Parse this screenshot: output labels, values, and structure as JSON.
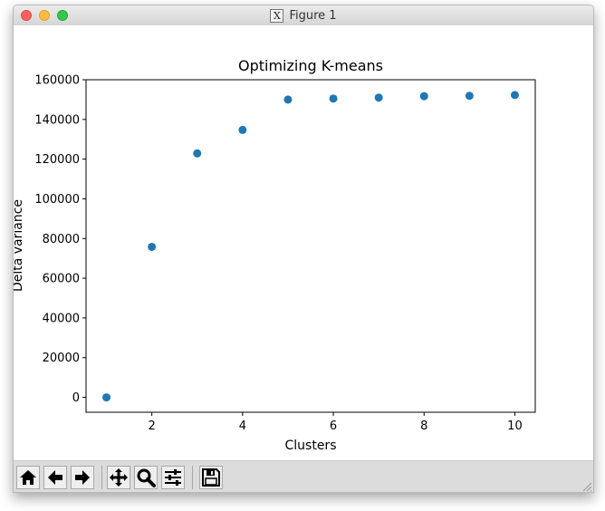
{
  "window": {
    "title": "Figure 1",
    "title_icon": "x11-icon",
    "title_icon_glyph": "X"
  },
  "toolbar": {
    "buttons": [
      {
        "name": "home-button",
        "icon": "home-icon"
      },
      {
        "name": "back-button",
        "icon": "arrow-left-icon"
      },
      {
        "name": "forward-button",
        "icon": "arrow-right-icon"
      },
      {
        "name": "pan-button",
        "icon": "move-icon"
      },
      {
        "name": "zoom-button",
        "icon": "magnifier-icon"
      },
      {
        "name": "configure-subplots-button",
        "icon": "sliders-icon"
      },
      {
        "name": "save-button",
        "icon": "floppy-disk-icon"
      }
    ]
  },
  "chart_data": {
    "type": "scatter",
    "title": "Optimizing K-means",
    "xlabel": "Clusters",
    "ylabel": "Delta variance",
    "xlim": [
      0.55,
      10.45
    ],
    "ylim": [
      -7500,
      160000
    ],
    "xticks": [
      2,
      4,
      6,
      8,
      10
    ],
    "yticks": [
      0,
      20000,
      40000,
      60000,
      80000,
      100000,
      120000,
      140000,
      160000
    ],
    "grid": false,
    "marker_color": "#1f77b4",
    "series": [
      {
        "x": [
          1,
          2,
          3,
          4,
          5,
          6,
          7,
          8,
          9,
          10
        ],
        "y": [
          0,
          75800,
          122900,
          134700,
          150000,
          150500,
          151000,
          151700,
          151900,
          152300
        ]
      }
    ]
  }
}
